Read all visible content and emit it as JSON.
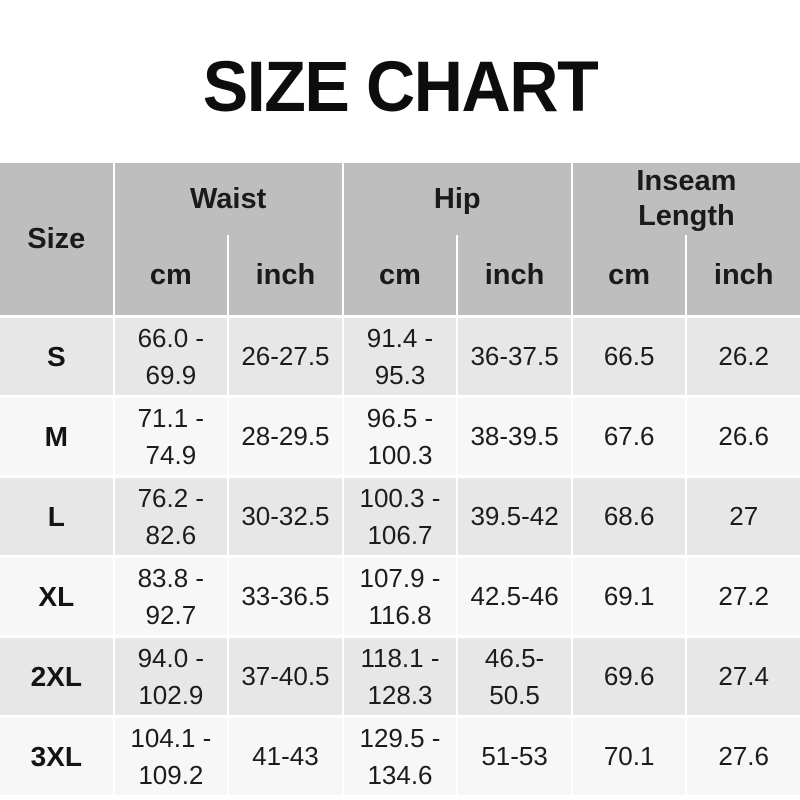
{
  "title": "SIZE CHART",
  "table": {
    "size_header": "Size",
    "groups": [
      {
        "label": "Waist",
        "units": [
          "cm",
          "inch"
        ]
      },
      {
        "label": "Hip",
        "units": [
          "cm",
          "inch"
        ]
      },
      {
        "label": "Inseam Length",
        "units": [
          "cm",
          "inch"
        ]
      }
    ],
    "rows": [
      {
        "size": "S",
        "waist_cm": "66.0 - 69.9",
        "waist_inch": "26-27.5",
        "hip_cm": "91.4 - 95.3",
        "hip_inch": "36-37.5",
        "inseam_cm": "66.5",
        "inseam_inch": "26.2"
      },
      {
        "size": "M",
        "waist_cm": "71.1 - 74.9",
        "waist_inch": "28-29.5",
        "hip_cm": "96.5 - 100.3",
        "hip_inch": "38-39.5",
        "inseam_cm": "67.6",
        "inseam_inch": "26.6"
      },
      {
        "size": "L",
        "waist_cm": "76.2 - 82.6",
        "waist_inch": "30-32.5",
        "hip_cm": "100.3 - 106.7",
        "hip_inch": "39.5-42",
        "inseam_cm": "68.6",
        "inseam_inch": "27"
      },
      {
        "size": "XL",
        "waist_cm": "83.8 - 92.7",
        "waist_inch": "33-36.5",
        "hip_cm": "107.9 - 116.8",
        "hip_inch": "42.5-46",
        "inseam_cm": "69.1",
        "inseam_inch": "27.2"
      },
      {
        "size": "2XL",
        "waist_cm": "94.0 - 102.9",
        "waist_inch": "37-40.5",
        "hip_cm": "118.1 - 128.3",
        "hip_inch": "46.5- 50.5",
        "inseam_cm": "69.6",
        "inseam_inch": "27.4"
      },
      {
        "size": "3XL",
        "waist_cm": "104.1 - 109.2",
        "waist_inch": "41-43",
        "hip_cm": "129.5 - 134.6",
        "hip_inch": "51-53",
        "inseam_cm": "70.1",
        "inseam_inch": "27.6"
      }
    ]
  },
  "colors": {
    "header_bg": "#bebebe",
    "row_odd_bg": "#e7e7e7",
    "row_even_bg": "#f7f7f7",
    "divider": "#ffffff",
    "text": "#1c1c1c"
  }
}
